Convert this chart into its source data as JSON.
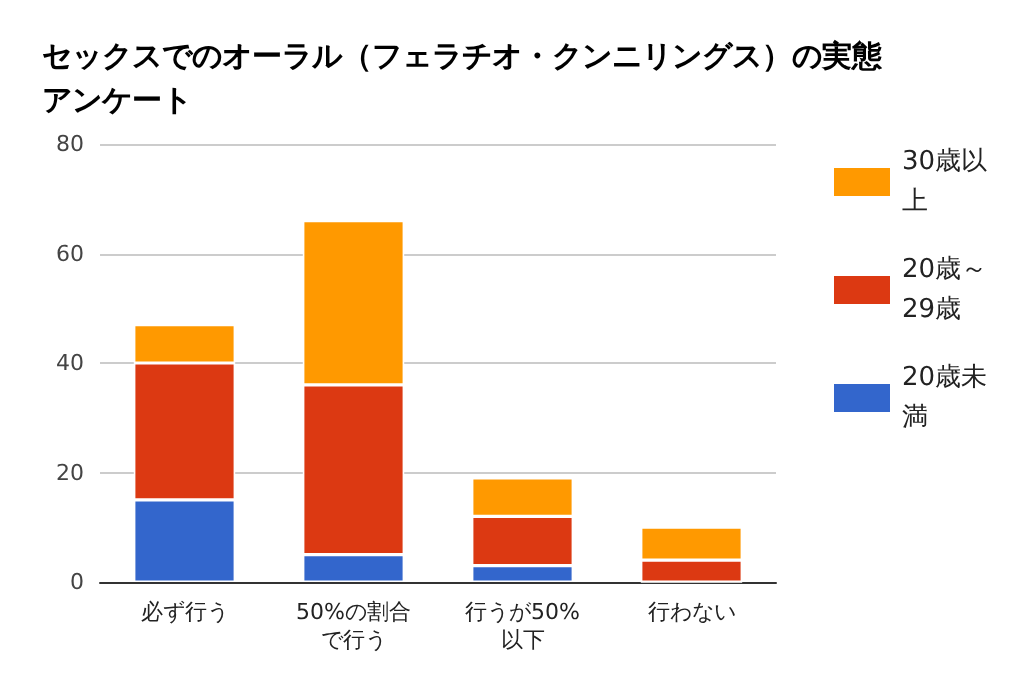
{
  "chart_data": {
    "type": "bar",
    "title": "セックスでのオーラル（フェラチオ・クンニリングス）の実態アンケート",
    "categories": [
      "必ず行う",
      "50%の割合で行う",
      "行うが50%以下",
      "行わない"
    ],
    "stacked": true,
    "ylim": [
      0,
      80
    ],
    "yticks": [
      0,
      20,
      40,
      60,
      80
    ],
    "grid": "y",
    "legend": "right",
    "series": [
      {
        "name": "20歳未満",
        "color": "#3366cc",
        "values": [
          15,
          5,
          3,
          0
        ]
      },
      {
        "name": "20歳～29歳",
        "color": "#dc3912",
        "values": [
          25,
          31,
          9,
          4
        ]
      },
      {
        "name": "30歳以上",
        "color": "#ff9900",
        "values": [
          7,
          30,
          7,
          6
        ]
      }
    ]
  }
}
